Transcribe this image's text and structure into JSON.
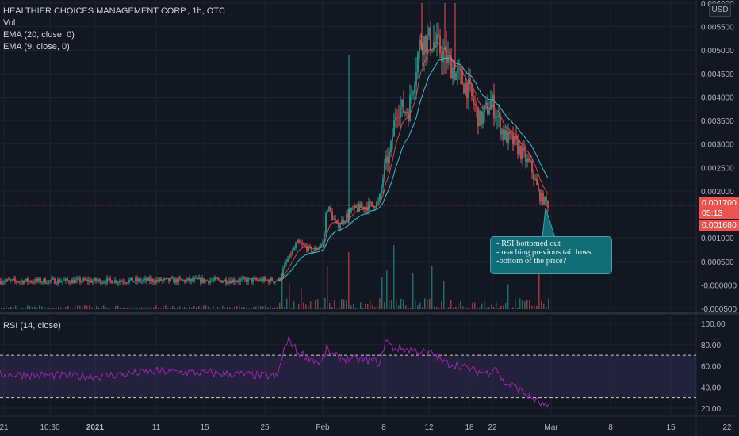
{
  "legend": {
    "title": "HEALTHIER CHOICES MANAGEMENT CORP., 1h, OTC",
    "vol": "Vol",
    "ema20": "EMA (20, close, 0)",
    "ema9": "EMA (9, close, 0)",
    "rsi": "RSI (14, close)"
  },
  "currency": "USD",
  "price_tags": {
    "last": "0.001700",
    "countdown": "05:13",
    "low": "0.001680"
  },
  "annotation": [
    "- RSI bottomed out",
    "- reaching previous tail lows.",
    "-bottom of the price?"
  ],
  "colors": {
    "background": "#131722",
    "up": "#26a69a",
    "down": "#ef5350",
    "ema20": "#26c6da",
    "ema9": "#ef5350",
    "rsi_line": "#9c27b0",
    "rsi_band": "#7e57c2",
    "callout": "#116e76"
  },
  "chart_data": {
    "type": "candlestick",
    "price_axis": {
      "ticks": [
        "0.006000",
        "0.005500",
        "0.005000",
        "0.004500",
        "0.004000",
        "0.003500",
        "0.003000",
        "0.002500",
        "0.002000",
        "0.001000",
        "0.000500",
        "-0.000000",
        "-0.000500"
      ],
      "range": [
        -0.0006,
        0.006
      ]
    },
    "time_axis": {
      "ticks": [
        "21",
        "10:30",
        "2021",
        "11",
        "15",
        "25",
        "Feb",
        "8",
        "12",
        "18",
        "22",
        "Mar",
        "8",
        "15",
        "22"
      ]
    },
    "rsi_axis": {
      "ticks": [
        "100.00",
        "80.00",
        "60.00",
        "40.00",
        "20.00"
      ],
      "band": [
        30,
        70
      ],
      "range": [
        13,
        103
      ]
    },
    "horizontal_line": 0.0017,
    "anchors": [
      [
        0,
        8e-05
      ],
      [
        352,
        0.0001
      ],
      [
        360,
        0.00045
      ],
      [
        375,
        0.0009
      ],
      [
        395,
        0.00072
      ],
      [
        408,
        0.0009
      ],
      [
        412,
        0.0017
      ],
      [
        425,
        0.00125
      ],
      [
        445,
        0.0016
      ],
      [
        478,
        0.00175
      ],
      [
        485,
        0.0025
      ],
      [
        492,
        0.0028
      ],
      [
        500,
        0.0038
      ],
      [
        515,
        0.0037
      ],
      [
        530,
        0.0052
      ],
      [
        545,
        0.0052
      ],
      [
        560,
        0.0049
      ],
      [
        575,
        0.0045
      ],
      [
        590,
        0.0042
      ],
      [
        605,
        0.0035
      ],
      [
        620,
        0.0039
      ],
      [
        635,
        0.0032
      ],
      [
        650,
        0.003
      ],
      [
        670,
        0.0025
      ],
      [
        680,
        0.0019
      ],
      [
        692,
        0.0017
      ]
    ],
    "rsi_anchors": [
      [
        0,
        52
      ],
      [
        120,
        50
      ],
      [
        200,
        55
      ],
      [
        300,
        52
      ],
      [
        350,
        50
      ],
      [
        358,
        75
      ],
      [
        365,
        85
      ],
      [
        375,
        73
      ],
      [
        390,
        68
      ],
      [
        405,
        62
      ],
      [
        412,
        76
      ],
      [
        420,
        70
      ],
      [
        430,
        67
      ],
      [
        450,
        66
      ],
      [
        470,
        65
      ],
      [
        480,
        62
      ],
      [
        486,
        85
      ],
      [
        495,
        77
      ],
      [
        520,
        75
      ],
      [
        545,
        72
      ],
      [
        560,
        63
      ],
      [
        580,
        60
      ],
      [
        600,
        55
      ],
      [
        615,
        53
      ],
      [
        625,
        60
      ],
      [
        635,
        44
      ],
      [
        650,
        40
      ],
      [
        670,
        30
      ],
      [
        680,
        25
      ],
      [
        692,
        20
      ]
    ],
    "volume_spikes": [
      [
        355,
        0.5
      ],
      [
        365,
        0.35
      ],
      [
        378,
        0.3
      ],
      [
        412,
        0.6
      ],
      [
        440,
        0.8
      ],
      [
        480,
        0.45
      ],
      [
        488,
        0.55
      ],
      [
        496,
        0.9
      ],
      [
        520,
        0.5
      ],
      [
        545,
        0.6
      ],
      [
        560,
        0.4
      ],
      [
        640,
        0.35
      ],
      [
        678,
        0.7
      ]
    ]
  }
}
